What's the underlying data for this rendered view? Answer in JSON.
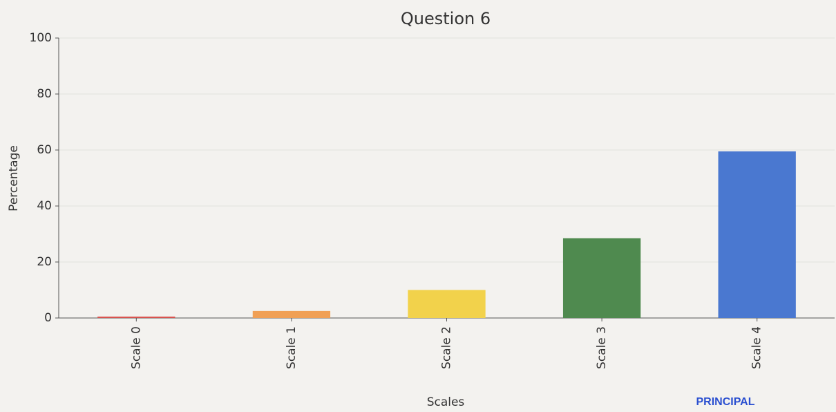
{
  "chart_data": {
    "type": "bar",
    "title": "Question 6",
    "xlabel": "Scales",
    "ylabel": "Percentage",
    "categories": [
      "Scale 0",
      "Scale 1",
      "Scale 2",
      "Scale 3",
      "Scale 4"
    ],
    "values": [
      0.5,
      2.5,
      10,
      28.5,
      59.5
    ],
    "colors": [
      "#d9534f",
      "#f0a055",
      "#f2d24b",
      "#4f8a4f",
      "#4a78d0"
    ],
    "ylim": [
      0,
      100
    ],
    "yticks": [
      0,
      20,
      40,
      60,
      80,
      100
    ],
    "grid": true,
    "stamp": "PRINCIPAL"
  }
}
